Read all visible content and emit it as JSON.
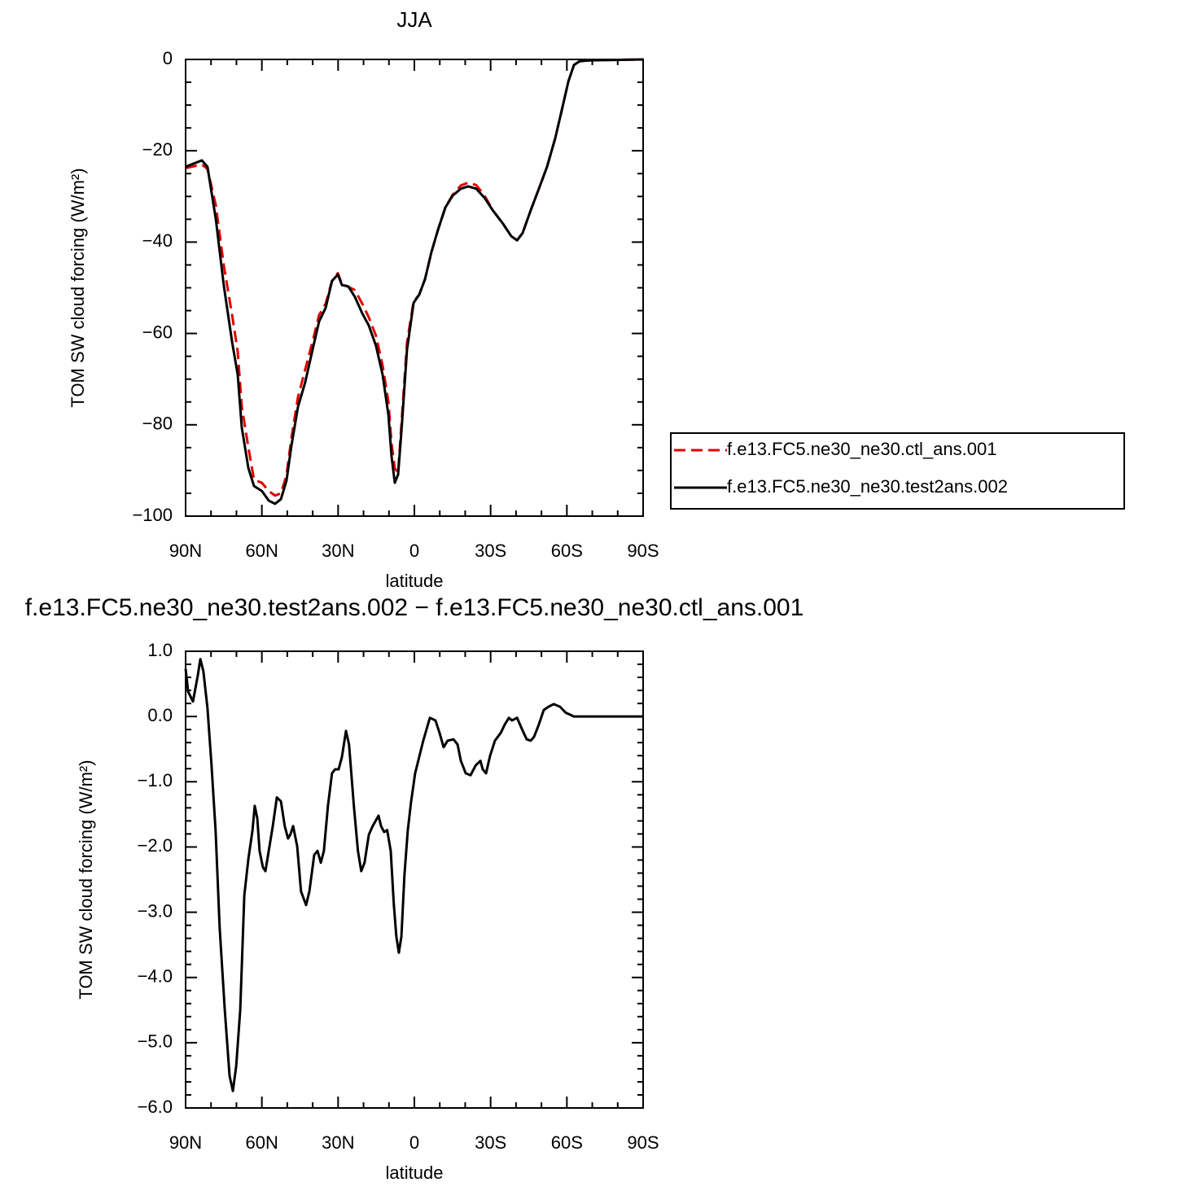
{
  "chart_data": [
    {
      "type": "line",
      "title": "JJA",
      "xlabel": "latitude",
      "ylabel": "TOM SW cloud forcing (W/m²)",
      "xlim": [
        90,
        -90
      ],
      "ylim": [
        0,
        -100
      ],
      "xticks": [
        {
          "value": 90,
          "label": "90N"
        },
        {
          "value": 60,
          "label": "60N"
        },
        {
          "value": 30,
          "label": "30N"
        },
        0,
        {
          "value": -30,
          "label": "30S"
        },
        {
          "value": -60,
          "label": "60S"
        },
        {
          "value": -90,
          "label": "90S"
        }
      ],
      "yticks": [
        0,
        {
          "value": -20,
          "label": "−20"
        },
        {
          "value": -40,
          "label": "−40"
        },
        {
          "value": -60,
          "label": "−60"
        },
        {
          "value": -80,
          "label": "−80"
        },
        {
          "value": -100,
          "label": "−100"
        }
      ],
      "legend": "right",
      "x": [
        90,
        83.6,
        81.4,
        78.1,
        75,
        71.7,
        69.5,
        67.9,
        65.3,
        63.1,
        60,
        57.3,
        54.8,
        52.5,
        50.3,
        48.4,
        45.8,
        43,
        39.7,
        37.5,
        34.9,
        32.4,
        30.1,
        28.5,
        26,
        23.4,
        20.5,
        17.9,
        15.1,
        12.5,
        10.2,
        9,
        7.7,
        6.4,
        5.1,
        2.9,
        0.3,
        -1.9,
        -4.2,
        -6.7,
        -9.3,
        -12.2,
        -15.1,
        -18.3,
        -21.2,
        -24.3,
        -27.6,
        -30.8,
        -34.9,
        -38.1,
        -40.4,
        -42.6,
        -45.8,
        -49,
        -52.2,
        -55.4,
        -58,
        -60.6,
        -62.8,
        -65,
        -69.2,
        -90
      ],
      "series": [
        {
          "name": "f.e13.FC5.ne30_ne30.ctl_ans.001",
          "color": "#e00000",
          "dash": "dashed",
          "values": [
            -23.8,
            -23,
            -24,
            -32,
            -45,
            -56,
            -64,
            -76,
            -85,
            -92,
            -92.7,
            -94.5,
            -95.5,
            -95,
            -91,
            -83,
            -74,
            -68,
            -61,
            -56,
            -53.5,
            -48.5,
            -46.8,
            -49.2,
            -49.8,
            -50.5,
            -53.5,
            -56.5,
            -60.5,
            -67,
            -75,
            -84,
            -89.5,
            -90.5,
            -80,
            -62,
            -53,
            -51.5,
            -48.1,
            -42.2,
            -37.3,
            -32.4,
            -29.6,
            -27.6,
            -27,
            -27.5,
            -29.8,
            -33,
            -36,
            -38.7,
            -39.6,
            -38,
            -33,
            -28.3,
            -23.5,
            -17.3,
            -11.1,
            -4.8,
            -1.2,
            -0.4,
            -0.2,
            0
          ]
        },
        {
          "name": "f.e13.FC5.ne30_ne30.test2ans.002",
          "color": "#000000",
          "dash": "solid",
          "values": [
            -23.5,
            -22.1,
            -23.5,
            -35,
            -49.4,
            -61.9,
            -69,
            -80.6,
            -89.5,
            -93.4,
            -94.5,
            -96.6,
            -97.3,
            -96.3,
            -92.2,
            -84.7,
            -76.1,
            -70.8,
            -62.7,
            -57.4,
            -54.4,
            -48.5,
            -47.1,
            -49.4,
            -49.7,
            -52,
            -55.6,
            -58.3,
            -62.7,
            -69,
            -77.9,
            -86.8,
            -92.7,
            -90.9,
            -81.5,
            -63.6,
            -53.3,
            -51.5,
            -48.1,
            -42.2,
            -37.3,
            -32.4,
            -29.8,
            -28.3,
            -27.8,
            -28.3,
            -30.3,
            -33,
            -36,
            -38.7,
            -39.6,
            -38,
            -33,
            -28.3,
            -23.5,
            -17.3,
            -11.1,
            -4.8,
            -1.2,
            -0.4,
            -0.2,
            0
          ]
        }
      ]
    },
    {
      "type": "line",
      "title": "f.e13.FC5.ne30_ne30.test2ans.002 − f.e13.FC5.ne30_ne30.ctl_ans.001",
      "xlabel": "latitude",
      "ylabel": "TOM SW cloud forcing (W/m²)",
      "xlim": [
        90,
        -90
      ],
      "ylim": [
        1,
        -6
      ],
      "xticks": [
        {
          "value": 90,
          "label": "90N"
        },
        {
          "value": 60,
          "label": "60N"
        },
        {
          "value": 30,
          "label": "30N"
        },
        0,
        {
          "value": -30,
          "label": "30S"
        },
        {
          "value": -60,
          "label": "60S"
        },
        {
          "value": -90,
          "label": "90S"
        }
      ],
      "yticks": [
        {
          "value": 1,
          "label": "1.0"
        },
        {
          "value": 0,
          "label": "0.0"
        },
        {
          "value": -1,
          "label": "−1.0"
        },
        {
          "value": -2,
          "label": "−2.0"
        },
        {
          "value": -3,
          "label": "−3.0"
        },
        {
          "value": -4,
          "label": "−4.0"
        },
        {
          "value": -5,
          "label": "−5.0"
        },
        {
          "value": -6,
          "label": "−6.0"
        }
      ],
      "color": "#000000",
      "x": [
        90,
        89,
        87.1,
        85.2,
        84.2,
        83,
        81.4,
        79.8,
        78.2,
        76.6,
        74.6,
        72.7,
        71.4,
        70.1,
        68.5,
        66.9,
        65.3,
        63.7,
        62.8,
        61.8,
        60.9,
        59.6,
        58.6,
        57.3,
        55.7,
        54.1,
        52.5,
        51,
        49.7,
        48.8,
        47.7,
        46.1,
        44.6,
        42.6,
        41.3,
        39.4,
        38.1,
        36.8,
        35.6,
        34,
        32.4,
        31.2,
        29.8,
        28.5,
        26.9,
        25.7,
        23.8,
        22.2,
        20.9,
        19.6,
        17.9,
        16.4,
        14.1,
        13.1,
        11.9,
        10.7,
        9.3,
        8.1,
        7.1,
        6.1,
        5.1,
        3.9,
        2.6,
        1.3,
        -0.3,
        -1.9,
        -3.5,
        -6.1,
        -8.3,
        -9.9,
        -11.5,
        -13.1,
        -15.4,
        -17,
        -18.3,
        -20.2,
        -22.1,
        -24.1,
        -26,
        -26.9,
        -28.2,
        -29.8,
        -31.7,
        -34,
        -35.6,
        -37.2,
        -38.4,
        -40.4,
        -42.3,
        -44.2,
        -45.8,
        -47.1,
        -49,
        -50.9,
        -52.8,
        -54.8,
        -57.3,
        -59.5,
        -61.2,
        -62.7,
        -65,
        -69.2,
        -90
      ],
      "values": [
        0.73,
        0.38,
        0.23,
        0.63,
        0.88,
        0.69,
        0.13,
        -0.75,
        -1.75,
        -3.24,
        -4.49,
        -5.51,
        -5.74,
        -5.36,
        -4.49,
        -2.74,
        -2.18,
        -1.75,
        -1.37,
        -1.56,
        -2.06,
        -2.31,
        -2.37,
        -2.06,
        -1.68,
        -1.24,
        -1.3,
        -1.68,
        -1.87,
        -1.81,
        -1.68,
        -1.99,
        -2.68,
        -2.89,
        -2.68,
        -2.12,
        -2.06,
        -2.24,
        -2.06,
        -1.37,
        -0.87,
        -0.81,
        -0.81,
        -0.62,
        -0.22,
        -0.43,
        -1.37,
        -2.06,
        -2.37,
        -2.24,
        -1.81,
        -1.68,
        -1.52,
        -1.68,
        -1.77,
        -1.74,
        -2.06,
        -2.87,
        -3.37,
        -3.62,
        -3.37,
        -2.43,
        -1.75,
        -1.31,
        -0.87,
        -0.62,
        -0.37,
        -0.02,
        -0.06,
        -0.25,
        -0.47,
        -0.37,
        -0.35,
        -0.43,
        -0.68,
        -0.87,
        -0.9,
        -0.75,
        -0.68,
        -0.81,
        -0.87,
        -0.6,
        -0.37,
        -0.25,
        -0.12,
        -0.02,
        -0.06,
        -0.02,
        -0.19,
        -0.35,
        -0.37,
        -0.31,
        -0.12,
        0.1,
        0.15,
        0.19,
        0.15,
        0.06,
        0.03,
        0,
        0,
        0,
        0
      ]
    }
  ]
}
